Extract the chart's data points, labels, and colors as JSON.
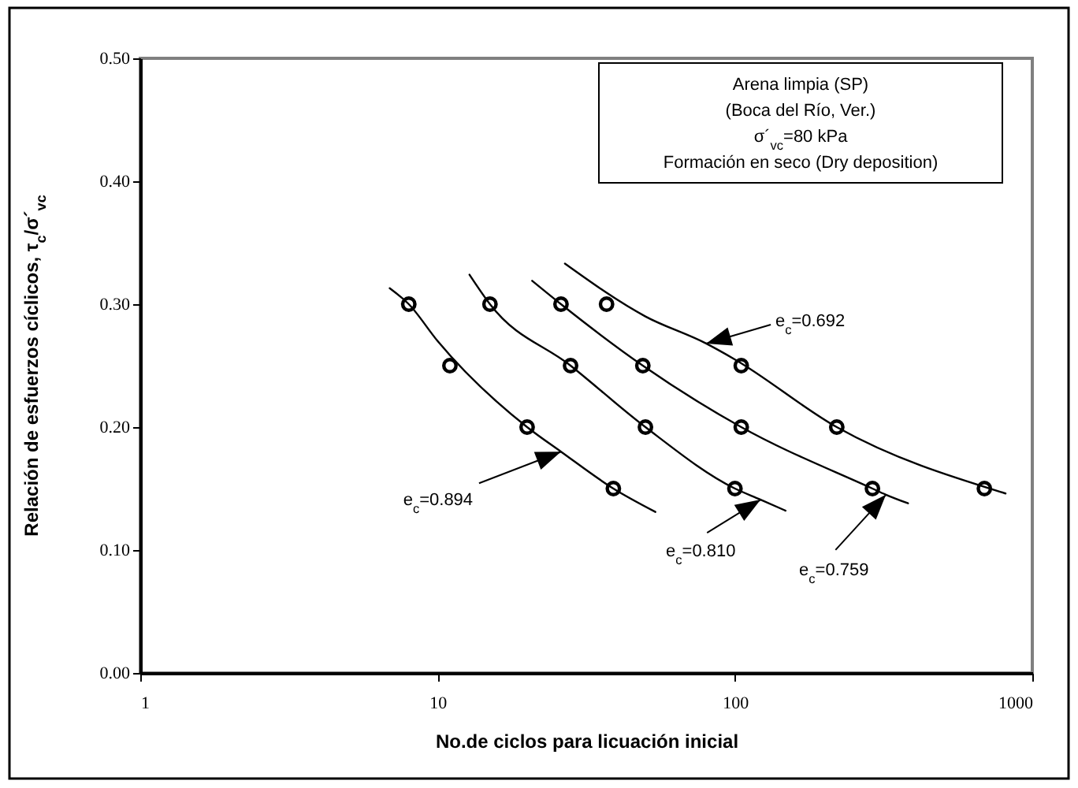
{
  "chart_data": {
    "type": "scatter",
    "xlabel": "No.de ciclos para licuación inicial",
    "ylabel": "Relación de esfuerzos cíclicos,  τ$_{c}$/σ´$_{vc}$",
    "log": "x",
    "grid": false,
    "xlim": [
      1,
      1000
    ],
    "xticks": [
      1,
      10,
      100,
      1000
    ],
    "ylim": [
      0,
      0.5
    ],
    "yticks": [
      {
        "value": 0,
        "label": "0.00"
      },
      {
        "value": 0.1,
        "label": "0.10"
      },
      {
        "value": 0.2,
        "label": "0.20"
      },
      {
        "value": 0.3,
        "label": "0.30"
      },
      {
        "value": 0.4,
        "label": "0.40"
      },
      {
        "value": 0.5,
        "label": "0.50"
      }
    ],
    "series": [
      {
        "marker": "circle",
        "color": "#000000",
        "x": [
          8,
          11,
          20,
          39
        ],
        "values": [
          0.3,
          0.25,
          0.2,
          0.15
        ]
      },
      {
        "marker": "circle",
        "color": "#000000",
        "x": [
          15,
          28,
          50,
          100
        ],
        "values": [
          0.3,
          0.25,
          0.2,
          0.15
        ]
      },
      {
        "marker": "circle",
        "color": "#000000",
        "x": [
          26,
          49,
          105,
          290
        ],
        "values": [
          0.3,
          0.25,
          0.2,
          0.15
        ]
      },
      {
        "marker": "circle",
        "color": "#000000",
        "x": [
          37,
          105,
          220,
          690
        ],
        "values": [
          0.3,
          0.25,
          0.2,
          0.15
        ]
      },
      {
        "type": "line",
        "color": "#000000",
        "x": [
          6.9,
          8,
          10,
          20,
          26,
          39,
          54
        ],
        "values": [
          0.313,
          0.3,
          0.27,
          0.2,
          0.18,
          0.15,
          0.131
        ]
      },
      {
        "type": "line",
        "color": "#000000",
        "x": [
          12.8,
          15,
          28,
          50,
          100,
          122,
          148
        ],
        "values": [
          0.324,
          0.3,
          0.25,
          0.2,
          0.15,
          0.141,
          0.132
        ]
      },
      {
        "type": "line",
        "color": "#000000",
        "x": [
          20.8,
          26,
          49,
          105,
          290,
          322,
          382
        ],
        "values": [
          0.319,
          0.3,
          0.25,
          0.2,
          0.15,
          0.145,
          0.138
        ]
      },
      {
        "type": "line",
        "color": "#000000",
        "x": [
          26.8,
          50,
          80,
          100,
          220,
          813
        ],
        "values": [
          0.333,
          0.29,
          0.268,
          0.255,
          0.2,
          0.146
        ]
      }
    ],
    "annotations": [
      "Arena limpia (SP)",
      "(Boca del Río, Ver.)",
      "σ´$_{vc}$=80 kPa",
      "Formación en seco (Dry deposition)",
      {
        "text": "e$_{c}$=0.894",
        "x": 26,
        "y": 0.18
      },
      {
        "text": "e$_{c}$=0.810",
        "x": 122,
        "y": 0.141
      },
      {
        "text": "e$_{c}$=0.759",
        "x": 322,
        "y": 0.145
      },
      {
        "text": "e$_{c}$=0.692",
        "x": 80,
        "y": 0.268
      }
    ]
  }
}
